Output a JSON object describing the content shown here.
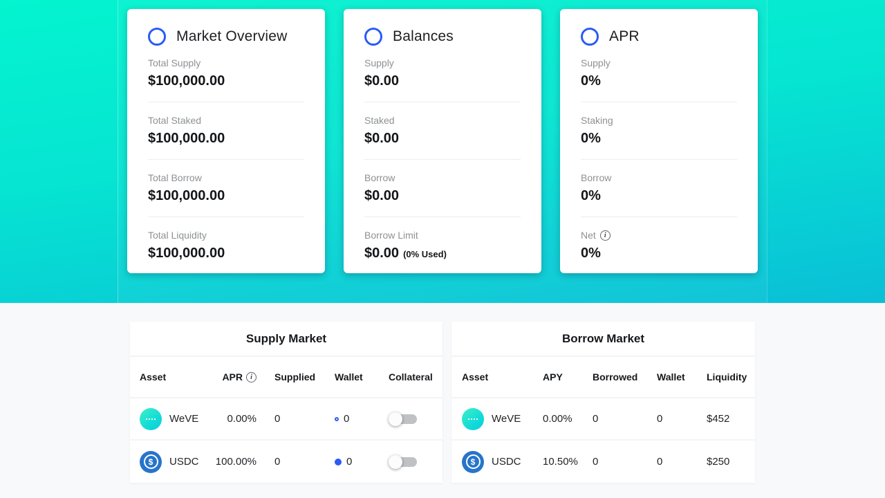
{
  "colors": {
    "accent_blue": "#2A5BF6",
    "usdc_blue": "#2775CA",
    "weve_teal": "#17E2CE",
    "hero_gradient_top": "#04F4CF",
    "hero_gradient_bottom": "#0ABFD7",
    "panel_bg": "#F7F9FA"
  },
  "icons": {
    "info_glyph": "i",
    "usdc_glyph": "$"
  },
  "hero": {
    "cards": [
      {
        "title": "Market Overview",
        "stats": [
          {
            "label": "Total Supply",
            "value": "$100,000.00"
          },
          {
            "label": "Total Staked",
            "value": "$100,000.00"
          },
          {
            "label": "Total Borrow",
            "value": "$100,000.00"
          },
          {
            "label": "Total Liquidity",
            "value": "$100,000.00"
          }
        ]
      },
      {
        "title": "Balances",
        "stats": [
          {
            "label": "Supply",
            "value": "$0.00"
          },
          {
            "label": "Staked",
            "value": "$0.00"
          },
          {
            "label": "Borrow",
            "value": "$0.00"
          },
          {
            "label": "Borrow Limit",
            "value": "$0.00",
            "suffix": "(0% Used)"
          }
        ]
      },
      {
        "title": "APR",
        "stats": [
          {
            "label": "Supply",
            "value": "0%"
          },
          {
            "label": "Staking",
            "value": "0%"
          },
          {
            "label": "Borrow",
            "value": "0%"
          },
          {
            "label": "Net",
            "value": "0%"
          }
        ]
      }
    ]
  },
  "supply_market": {
    "title": "Supply Market",
    "columns": {
      "asset": "Asset",
      "apr": "APR",
      "supplied": "Supplied",
      "wallet": "Wallet",
      "collateral": "Collateral"
    },
    "rows": [
      {
        "asset": "WeVE",
        "apr": "0.00%",
        "supplied": "0",
        "wallet": "0",
        "wallet_dot": "outline",
        "collateral_on": false
      },
      {
        "asset": "USDC",
        "apr": "100.00%",
        "supplied": "0",
        "wallet": "0",
        "wallet_dot": "filled",
        "collateral_on": false
      }
    ]
  },
  "borrow_market": {
    "title": "Borrow Market",
    "columns": {
      "asset": "Asset",
      "apy": "APY",
      "borrowed": "Borrowed",
      "wallet": "Wallet",
      "liquidity": "Liquidity"
    },
    "rows": [
      {
        "asset": "WeVE",
        "apy": "0.00%",
        "borrowed": "0",
        "wallet": "0",
        "liquidity": "$452"
      },
      {
        "asset": "USDC",
        "apy": "10.50%",
        "borrowed": "0",
        "wallet": "0",
        "liquidity": "$250"
      }
    ]
  }
}
